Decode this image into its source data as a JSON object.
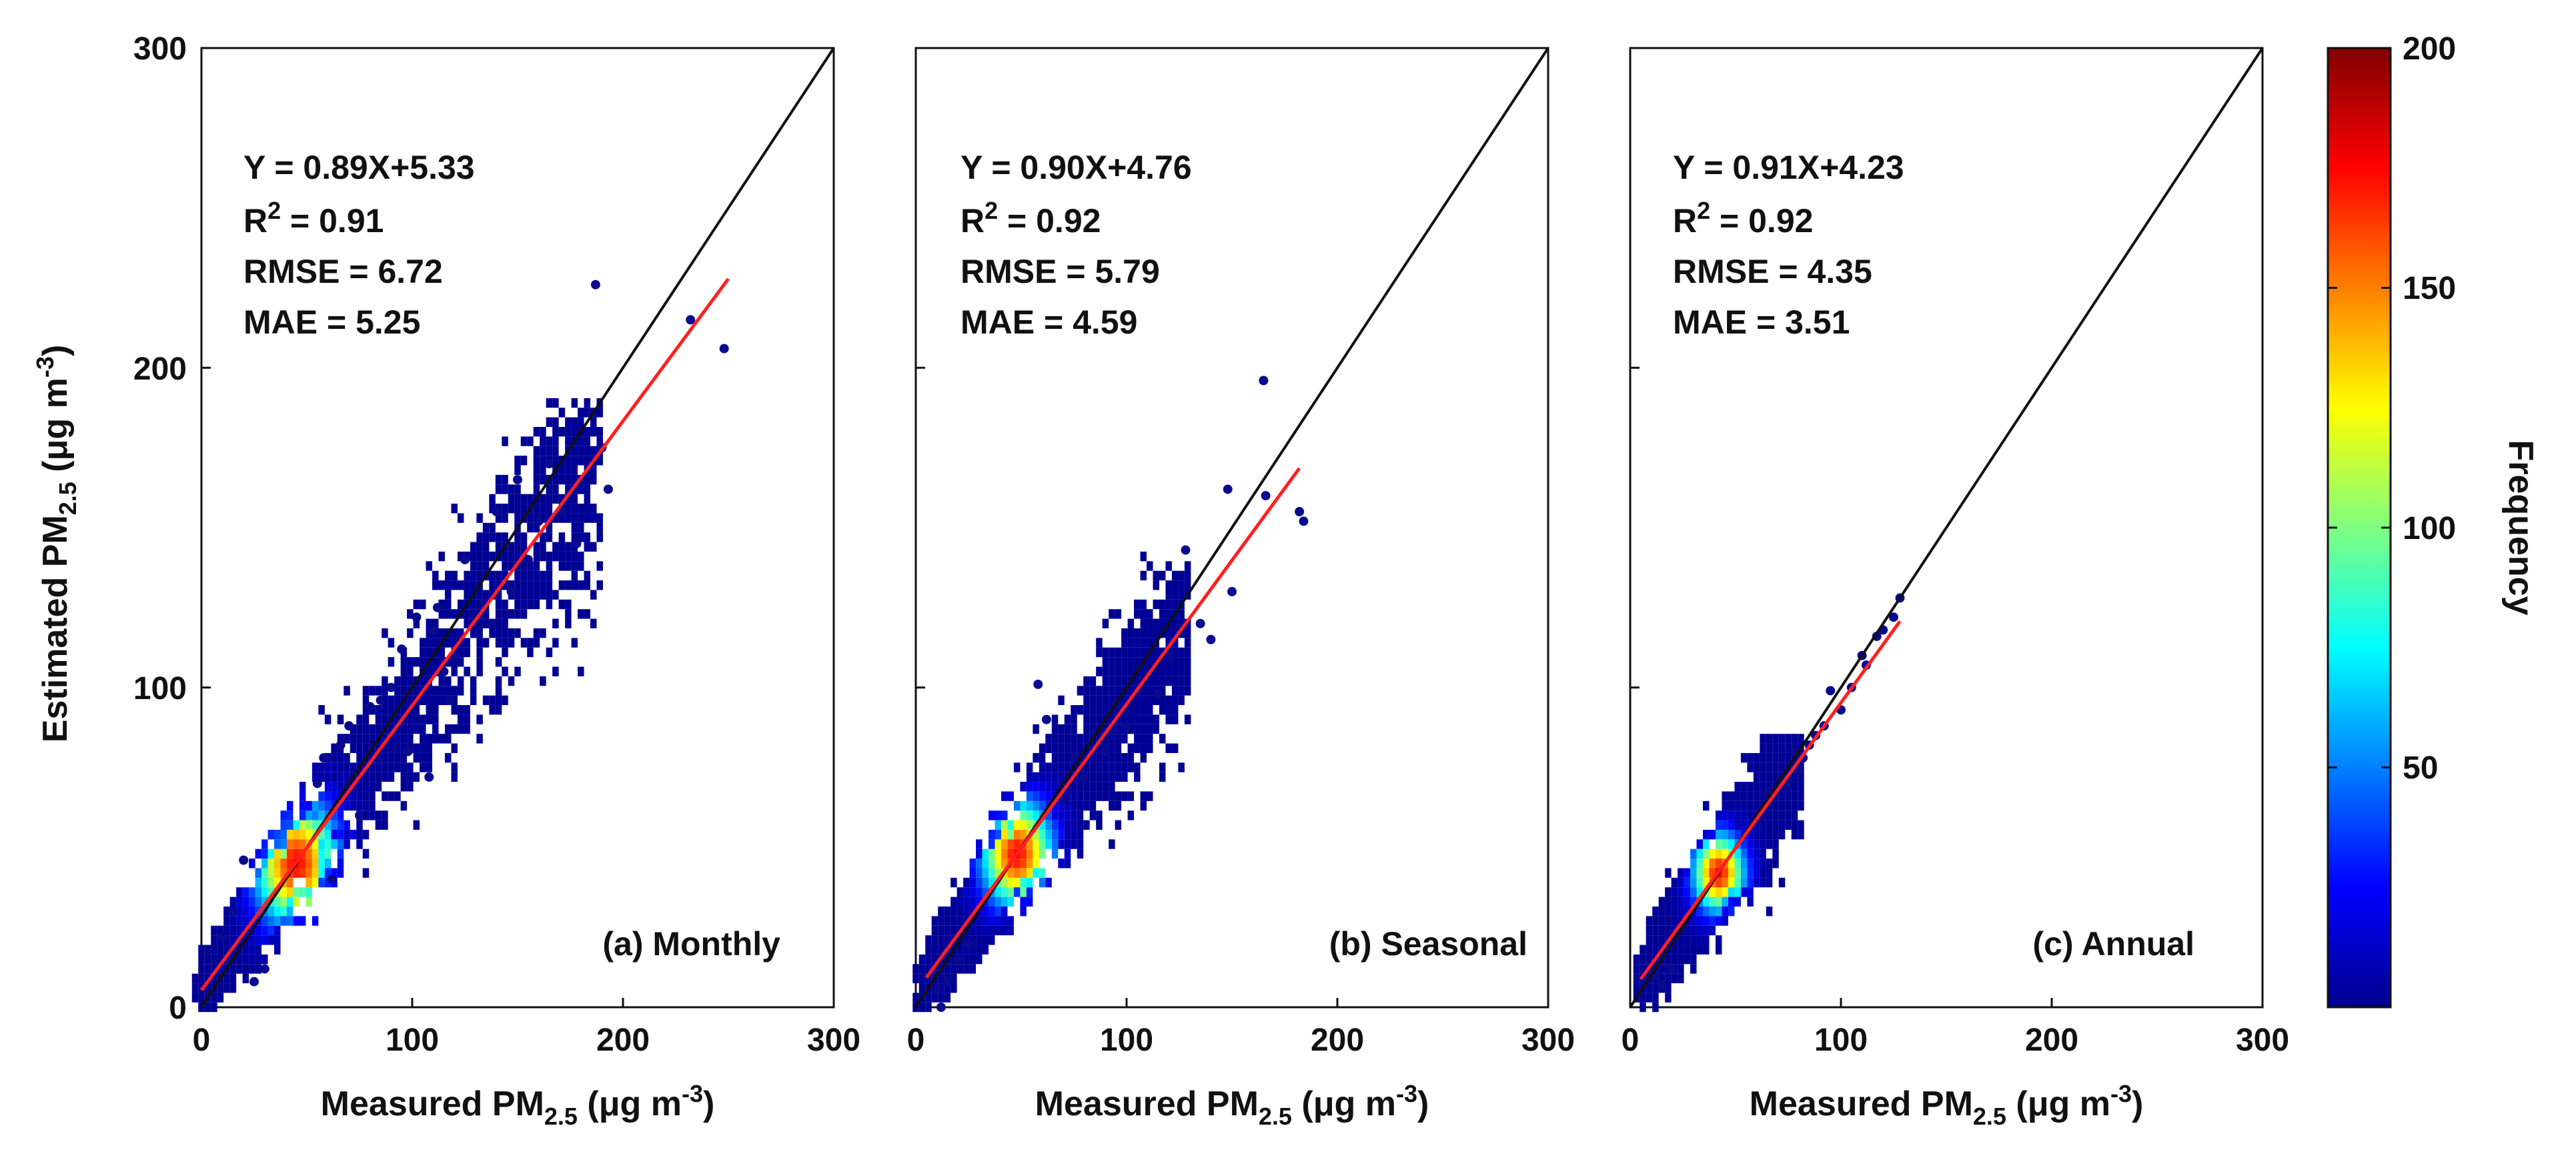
{
  "figure": {
    "ylabel_main": "Estimated PM",
    "ylabel_sub": "2.5",
    "ylabel_unit_pre": " (μg m",
    "ylabel_unit_sup": "-3",
    "ylabel_unit_post": ")"
  },
  "colorbar": {
    "label": "Frequency",
    "ticks": [
      "200",
      "150",
      "100",
      "50"
    ],
    "range": [
      0,
      200
    ],
    "tick_values": [
      200,
      150,
      100,
      50
    ]
  },
  "panels": [
    {
      "label": "(a) Monthly",
      "eq": "Y = 0.89X+5.33",
      "r2_pre": "R",
      "r2_sup": "2",
      "r2_post": " = 0.91",
      "rmse": "RMSE = 6.72",
      "mae": "MAE = 5.25",
      "xlabel_main": "Measured PM",
      "xlabel_sub": "2.5",
      "xlabel_unit_pre": " (μg m",
      "xlabel_unit_sup": "-3",
      "xlabel_unit_post": ")",
      "xticks": [
        "0",
        "100",
        "200",
        "300"
      ],
      "yticks": [
        "0",
        "100",
        "200",
        "300"
      ]
    },
    {
      "label": "(b) Seasonal",
      "eq": "Y = 0.90X+4.76",
      "r2_pre": "R",
      "r2_sup": "2",
      "r2_post": " = 0.92",
      "rmse": "RMSE = 5.79",
      "mae": "MAE = 4.59",
      "xlabel_main": "Measured PM",
      "xlabel_sub": "2.5",
      "xlabel_unit_pre": " (μg m",
      "xlabel_unit_sup": "-3",
      "xlabel_unit_post": ")",
      "xticks": [
        "0",
        "100",
        "200",
        "300"
      ]
    },
    {
      "label": "(c) Annual",
      "eq": "Y = 0.91X+4.23",
      "r2_pre": "R",
      "r2_sup": "2",
      "r2_post": " = 0.92",
      "rmse": "RMSE = 4.35",
      "mae": "MAE = 3.51",
      "xlabel_main": "Measured PM",
      "xlabel_sub": "2.5",
      "xlabel_unit_pre": " (μg m",
      "xlabel_unit_sup": "-3",
      "xlabel_unit_post": ")",
      "xticks": [
        "0",
        "100",
        "200",
        "300"
      ]
    }
  ],
  "chart_data": [
    {
      "type": "scatter",
      "title": "(a) Monthly",
      "xlabel": "Measured PM2.5 (μg m-3)",
      "ylabel": "Estimated PM2.5 (μg m-3)",
      "xlim": [
        0,
        300
      ],
      "ylim": [
        0,
        300
      ],
      "grid": false,
      "color_by": "Frequency",
      "fit": {
        "slope": 0.89,
        "intercept": 5.33,
        "x_range": [
          0,
          250
        ],
        "r2": 0.91,
        "rmse": 6.72,
        "mae": 5.25
      },
      "reference_line": {
        "slope": 1,
        "intercept": 0
      },
      "density": {
        "x_range": [
          2,
          190
        ],
        "y_range": [
          2,
          190
        ],
        "peak": [
          45,
          45
        ],
        "spread": 13
      },
      "points": [
        [
          187,
          226
        ],
        [
          232,
          215
        ],
        [
          248,
          206
        ],
        [
          190,
          175
        ],
        [
          185,
          186
        ],
        [
          193,
          162
        ],
        [
          178,
          145
        ],
        [
          165,
          170
        ],
        [
          170,
          155
        ],
        [
          160,
          152
        ],
        [
          155,
          140
        ],
        [
          150,
          165
        ],
        [
          147,
          130
        ],
        [
          140,
          155
        ],
        [
          135,
          135
        ],
        [
          130,
          122
        ],
        [
          138,
          120
        ],
        [
          125,
          140
        ],
        [
          120,
          110
        ],
        [
          115,
          105
        ],
        [
          112,
          125
        ],
        [
          102,
          122
        ],
        [
          98,
          80
        ],
        [
          95,
          112
        ],
        [
          90,
          100
        ],
        [
          108,
          72
        ],
        [
          85,
          96
        ],
        [
          80,
          94
        ],
        [
          75,
          60
        ],
        [
          70,
          88
        ],
        [
          66,
          82
        ],
        [
          62,
          40
        ],
        [
          58,
          78
        ],
        [
          55,
          70
        ],
        [
          20,
          46
        ],
        [
          15,
          30
        ],
        [
          10,
          22
        ],
        [
          8,
          14
        ],
        [
          25,
          8
        ],
        [
          30,
          12
        ],
        [
          110,
          118
        ],
        [
          118,
          96
        ]
      ]
    },
    {
      "type": "scatter",
      "title": "(b) Seasonal",
      "xlabel": "Measured PM2.5 (μg m-3)",
      "ylabel": "",
      "xlim": [
        0,
        300
      ],
      "ylim": [
        0,
        300
      ],
      "grid": false,
      "color_by": "Frequency",
      "fit": {
        "slope": 0.9,
        "intercept": 4.76,
        "x_range": [
          5,
          182
        ],
        "r2": 0.92,
        "rmse": 5.79,
        "mae": 4.59
      },
      "reference_line": {
        "slope": 1,
        "intercept": 0
      },
      "density": {
        "x_range": [
          5,
          130
        ],
        "y_range": [
          2,
          145
        ],
        "peak": [
          48,
          48
        ],
        "spread": 11
      },
      "points": [
        [
          165,
          196
        ],
        [
          166,
          160
        ],
        [
          184,
          152
        ],
        [
          182,
          155
        ],
        [
          148,
          162
        ],
        [
          150,
          130
        ],
        [
          128,
          143
        ],
        [
          135,
          120
        ],
        [
          140,
          115
        ],
        [
          125,
          118
        ],
        [
          120,
          110
        ],
        [
          115,
          98
        ],
        [
          110,
          104
        ],
        [
          105,
          100
        ],
        [
          100,
          88
        ],
        [
          95,
          95
        ],
        [
          58,
          101
        ],
        [
          62,
          90
        ],
        [
          12,
          0
        ],
        [
          10,
          5
        ],
        [
          15,
          8
        ],
        [
          20,
          15
        ],
        [
          25,
          20
        ],
        [
          90,
          80
        ],
        [
          85,
          86
        ],
        [
          80,
          72
        ],
        [
          75,
          78
        ],
        [
          70,
          65
        ]
      ]
    },
    {
      "type": "scatter",
      "title": "(c) Annual",
      "xlabel": "Measured PM2.5 (μg m-3)",
      "ylabel": "",
      "xlim": [
        0,
        300
      ],
      "ylim": [
        0,
        300
      ],
      "grid": false,
      "color_by": "Frequency",
      "fit": {
        "slope": 0.91,
        "intercept": 4.23,
        "x_range": [
          5,
          128
        ],
        "r2": 0.92,
        "rmse": 4.35,
        "mae": 3.51
      },
      "reference_line": {
        "slope": 1,
        "intercept": 0
      },
      "density": {
        "x_range": [
          8,
          82
        ],
        "y_range": [
          6,
          85
        ],
        "peak": [
          42,
          42
        ],
        "spread": 8
      },
      "points": [
        [
          128,
          128
        ],
        [
          125,
          122
        ],
        [
          120,
          118
        ],
        [
          117,
          116
        ],
        [
          112,
          107
        ],
        [
          110,
          110
        ],
        [
          105,
          100
        ],
        [
          100,
          93
        ],
        [
          95,
          99
        ],
        [
          92,
          88
        ],
        [
          88,
          85
        ],
        [
          85,
          82
        ],
        [
          82,
          78
        ],
        [
          80,
          74
        ],
        [
          78,
          80
        ],
        [
          75,
          70
        ],
        [
          15,
          7
        ],
        [
          12,
          10
        ],
        [
          10,
          12
        ],
        [
          20,
          12
        ],
        [
          18,
          22
        ]
      ]
    }
  ]
}
